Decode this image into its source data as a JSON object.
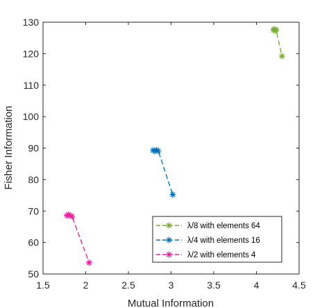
{
  "chart_data": {
    "type": "scatter",
    "title": "",
    "xlabel": "Mutual Information",
    "ylabel": "Fisher Information",
    "xlim": [
      1.5,
      4.5
    ],
    "ylim": [
      50,
      130
    ],
    "xticks": [
      1.5,
      2,
      2.5,
      3,
      3.5,
      4,
      4.5
    ],
    "xtick_labels": [
      "1.5",
      "2",
      "2.5",
      "3",
      "3.5",
      "4",
      "4.5"
    ],
    "yticks": [
      50,
      60,
      70,
      80,
      90,
      100,
      110,
      120,
      130
    ],
    "ytick_labels": [
      "50",
      "60",
      "70",
      "80",
      "90",
      "100",
      "110",
      "120",
      "130"
    ],
    "grid": false,
    "legend_position": "bottom-right",
    "line_style": "dashed",
    "marker": "asterisk",
    "series": [
      {
        "name": "λ/8 with elements 64",
        "color": "#77ac30",
        "x": [
          4.2,
          4.21,
          4.22,
          4.23,
          4.3
        ],
        "y": [
          127.5,
          127.8,
          127.3,
          127.6,
          119.2
        ]
      },
      {
        "name": "λ/4 with elements 16",
        "color": "#0072bd",
        "x": [
          2.79,
          2.81,
          2.83,
          2.85,
          3.02
        ],
        "y": [
          89.3,
          89.0,
          89.4,
          89.1,
          75.2
        ]
      },
      {
        "name": "λ/2 with elements 4",
        "color": "#f01fa0",
        "x": [
          1.78,
          1.8,
          1.82,
          1.84,
          2.04
        ],
        "y": [
          68.6,
          68.9,
          68.5,
          68.3,
          53.6
        ]
      }
    ]
  }
}
